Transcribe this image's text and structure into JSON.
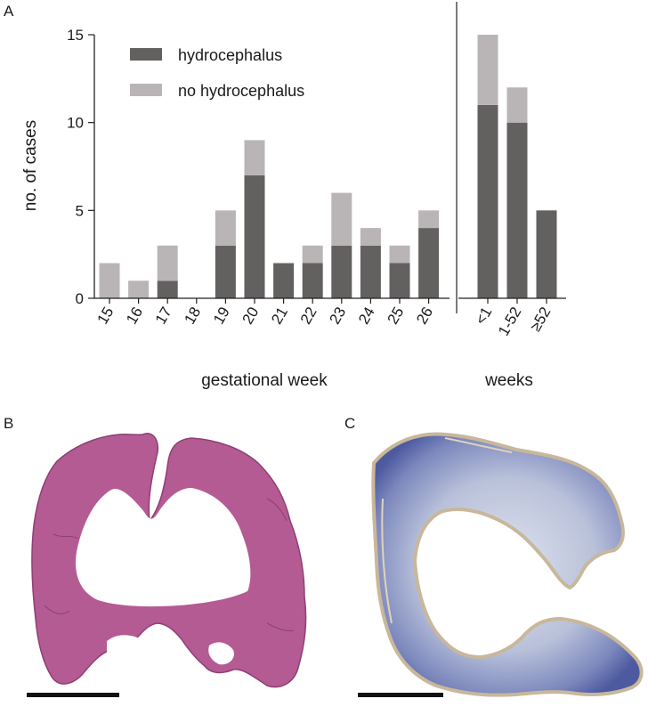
{
  "panels": {
    "a": "A",
    "b": "B",
    "c": "C"
  },
  "chart_data": {
    "type": "bar",
    "stacked": true,
    "ylabel": "no. of cases",
    "ylim": [
      0,
      15
    ],
    "yticks": [
      "0",
      "5",
      "10",
      "15"
    ],
    "legend_position": "top-left",
    "groups": [
      {
        "xlabel": "gestational week",
        "categories": [
          "15",
          "16",
          "17",
          "18",
          "19",
          "20",
          "21",
          "22",
          "23",
          "24",
          "25",
          "26"
        ],
        "series": [
          {
            "name": "hydrocephalus",
            "color": "#636060",
            "values": [
              0,
              0,
              1,
              0,
              3,
              7,
              2,
              2,
              3,
              3,
              2,
              4
            ]
          },
          {
            "name": "no hydrocephalus",
            "color": "#b9b5b6",
            "values": [
              2,
              1,
              2,
              0,
              2,
              2,
              0,
              1,
              3,
              1,
              1,
              1
            ]
          }
        ]
      },
      {
        "xlabel": "weeks",
        "categories": [
          "<1",
          "1-52",
          "≥52"
        ],
        "series": [
          {
            "name": "hydrocephalus",
            "color": "#636060",
            "values": [
              11,
              10,
              5
            ]
          },
          {
            "name": "no hydrocephalus",
            "color": "#b9b5b6",
            "values": [
              4,
              2,
              0
            ]
          }
        ]
      }
    ],
    "legend": [
      {
        "name": "hydrocephalus",
        "color": "#636060"
      },
      {
        "name": "no hydrocephalus",
        "color": "#b9b5b6"
      }
    ]
  },
  "micrographs": {
    "b_stain_color": "#b0558f",
    "c_stain_color": "#5563a6"
  }
}
